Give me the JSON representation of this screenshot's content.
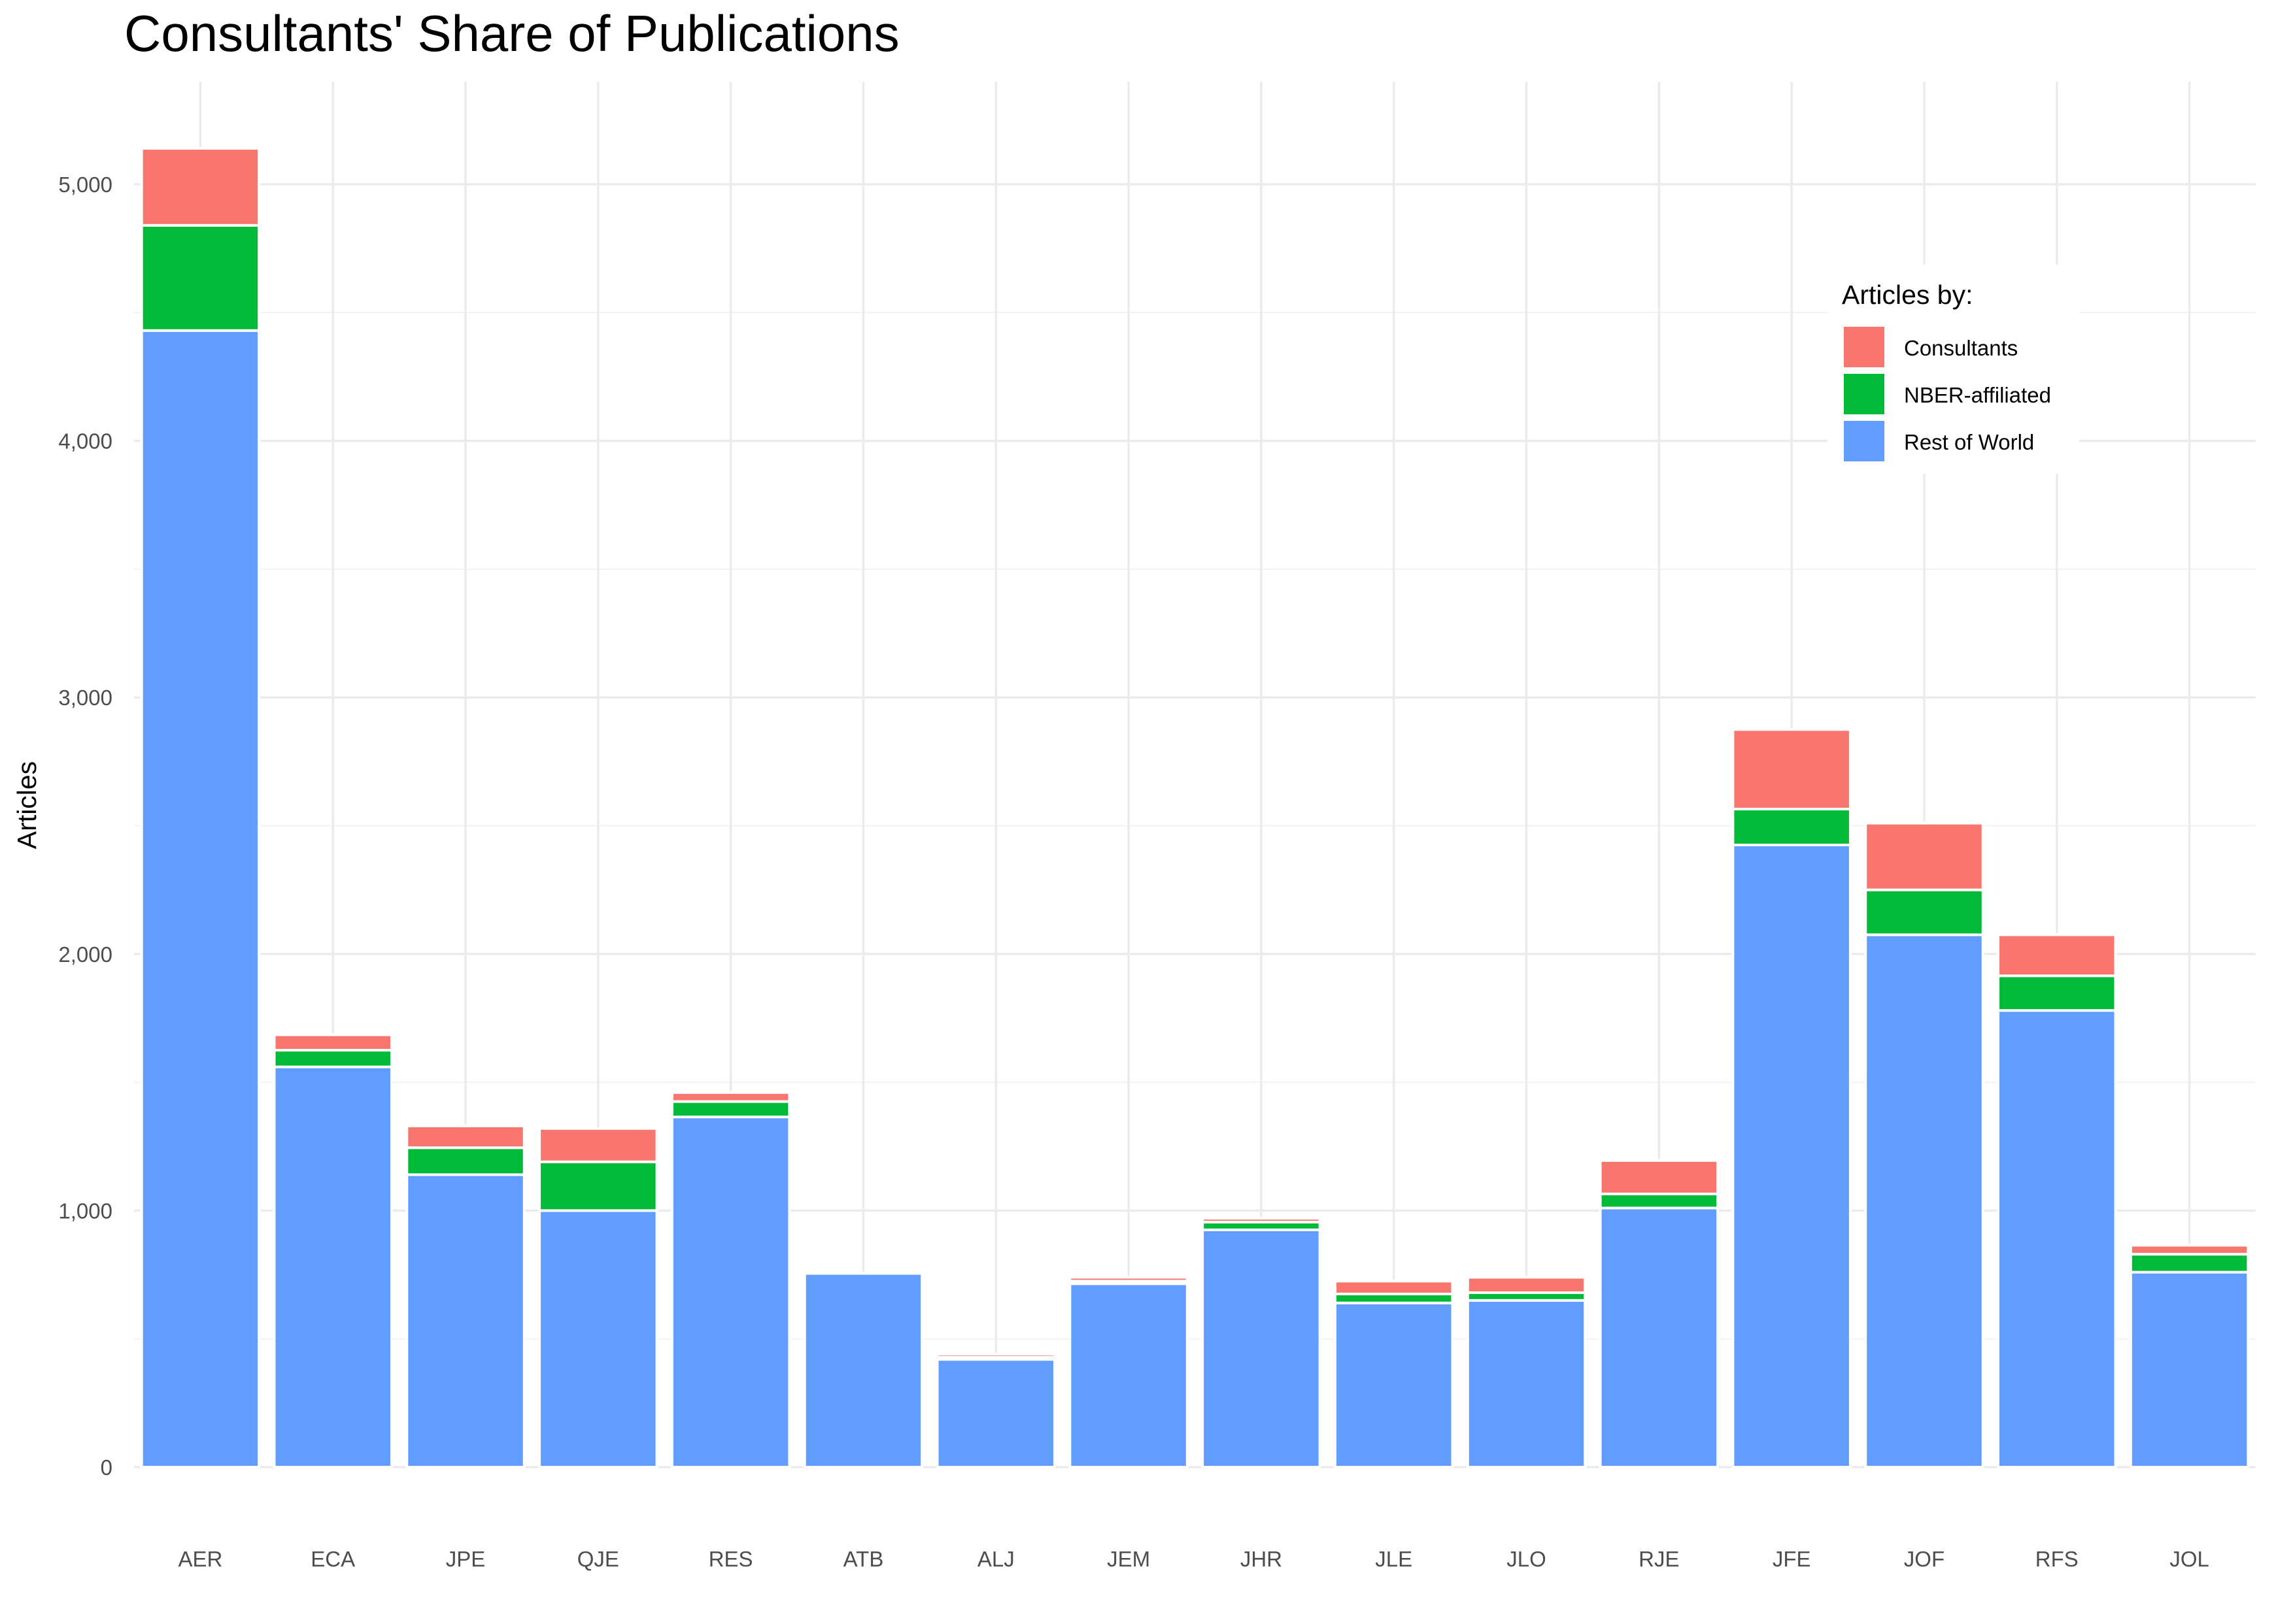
{
  "chart_data": {
    "type": "bar",
    "stacked": true,
    "title": "Consultants' Share of Publications",
    "xlabel": "",
    "ylabel": "Articles",
    "ylim": [
      0,
      5400
    ],
    "yticks": [
      0,
      1000,
      2000,
      3000,
      4000,
      5000
    ],
    "ytick_labels": [
      "0",
      "1,000",
      "2,000",
      "3,000",
      "4,000",
      "5,000"
    ],
    "grid": true,
    "categories": [
      "AER",
      "ECA",
      "JPE",
      "QJE",
      "RES",
      "ATB",
      "ALJ",
      "JEM",
      "JHR",
      "JLE",
      "JLO",
      "RJE",
      "JFE",
      "JOF",
      "RFS",
      "JOL"
    ],
    "series": [
      {
        "name": "Rest of World",
        "color": "#619CFF",
        "values": [
          4430,
          1560,
          1140,
          1000,
          1365,
          755,
          420,
          715,
          925,
          640,
          650,
          1010,
          2425,
          2075,
          1780,
          760
        ]
      },
      {
        "name": "NBER-affiliated",
        "color": "#00BA38",
        "values": [
          410,
          65,
          105,
          190,
          60,
          0,
          8,
          10,
          30,
          35,
          30,
          55,
          140,
          175,
          135,
          70
        ]
      },
      {
        "name": "Consultants",
        "color": "#F8766D",
        "values": [
          300,
          60,
          85,
          130,
          35,
          0,
          12,
          15,
          15,
          50,
          60,
          130,
          310,
          260,
          160,
          35
        ]
      }
    ],
    "legend": {
      "title": "Articles by:",
      "position": "top-right",
      "entries": [
        "Consultants",
        "NBER-affiliated",
        "Rest of World"
      ]
    }
  }
}
